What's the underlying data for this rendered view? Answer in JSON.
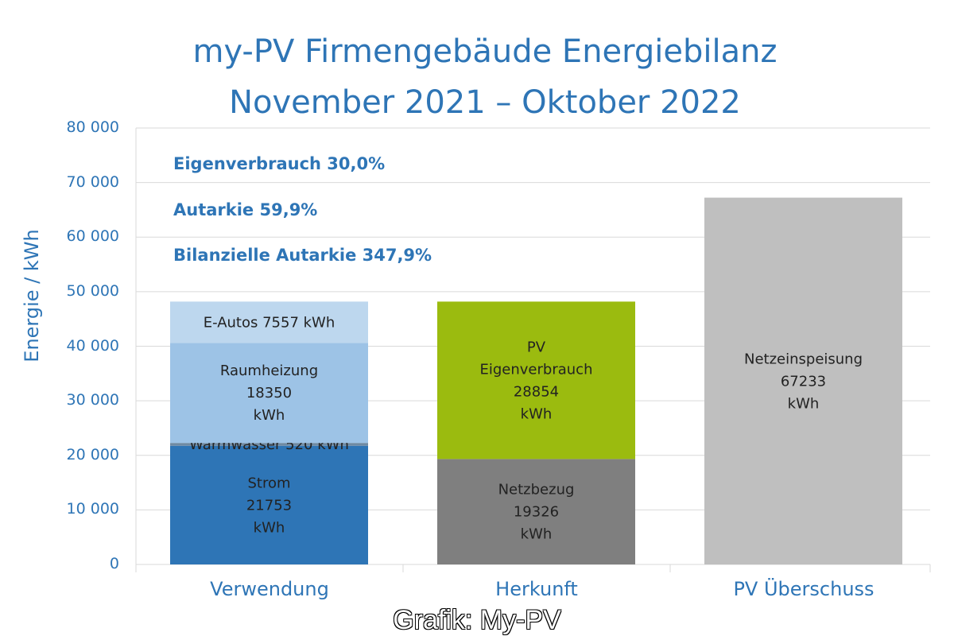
{
  "chart_data": {
    "type": "bar",
    "stacked": true,
    "title": "my-PV Firmengebäude Energiebilanz",
    "subtitle": "November 2021  – Oktober 2022",
    "ylabel": "Energie / kWh",
    "xlabel": "",
    "ylim": [
      0,
      80000
    ],
    "yticks": [
      "0",
      "10 000",
      "20 000",
      "30 000",
      "40 000",
      "50 000",
      "60 000",
      "70 000",
      "80 000"
    ],
    "yticks_values": [
      0,
      10000,
      20000,
      30000,
      40000,
      50000,
      60000,
      70000,
      80000
    ],
    "grid": true,
    "categories": [
      "Verwendung",
      "Herkunft",
      "PV Überschuss"
    ],
    "series": [
      {
        "category": "Verwendung",
        "name": "Strom",
        "value": 21753,
        "color": "#2e75b6",
        "label": [
          "Strom",
          "21753",
          "kWh"
        ]
      },
      {
        "category": "Verwendung",
        "name": "Warmwasser",
        "value": 520,
        "color": "#6f8aa3",
        "label": [
          "Warmwasser 520  kWh"
        ]
      },
      {
        "category": "Verwendung",
        "name": "Raumheizung",
        "value": 18350,
        "color": "#9dc3e6",
        "label": [
          "Raumheizung",
          "18350",
          "kWh"
        ]
      },
      {
        "category": "Verwendung",
        "name": "E-Autos",
        "value": 7557,
        "color": "#bdd7ee",
        "label": [
          "E-Autos 7557  kWh"
        ]
      },
      {
        "category": "Herkunft",
        "name": "Netzbezug",
        "value": 19326,
        "color": "#7f7f7f",
        "label": [
          "Netzbezug",
          "19326",
          "kWh"
        ]
      },
      {
        "category": "Herkunft",
        "name": "PV Eigenverbrauch",
        "value": 28854,
        "color": "#9bbb0f",
        "label": [
          "PV",
          "Eigenverbrauch",
          "28854",
          "kWh"
        ]
      },
      {
        "category": "PV Überschuss",
        "name": "Netzeinspeisung",
        "value": 67233,
        "color": "#bfbfbf",
        "label": [
          "Netzeinspeisung",
          "67233",
          "kWh"
        ]
      }
    ],
    "annotations": [
      "Eigenverbrauch 30,0%",
      "Autarkie 59,9%",
      "Bilanzielle Autarkie 347,9%"
    ]
  },
  "caption": "Grafik: My-PV"
}
